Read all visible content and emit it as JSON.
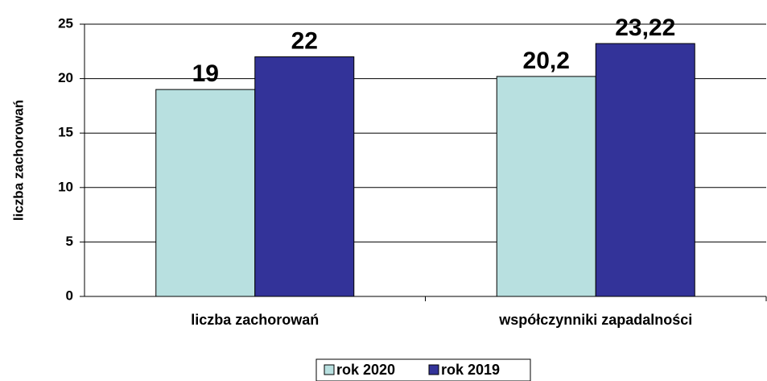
{
  "chart_data": {
    "type": "bar",
    "y_label": "liczba zachorowań",
    "categories": [
      "liczba zachorowań",
      "współczynniki zapadalności"
    ],
    "series": [
      {
        "name": "rok 2020",
        "color": "#b8e0e0",
        "values": [
          19,
          20.2
        ],
        "value_labels": [
          "19",
          "20,2"
        ]
      },
      {
        "name": "rok 2019",
        "color": "#333399",
        "values": [
          22,
          23.22
        ],
        "value_labels": [
          "22",
          "23,22"
        ]
      }
    ],
    "ylim": [
      0,
      25
    ],
    "yticks": [
      0,
      5,
      10,
      15,
      20,
      25
    ],
    "grid": true,
    "legend": "bottom"
  }
}
